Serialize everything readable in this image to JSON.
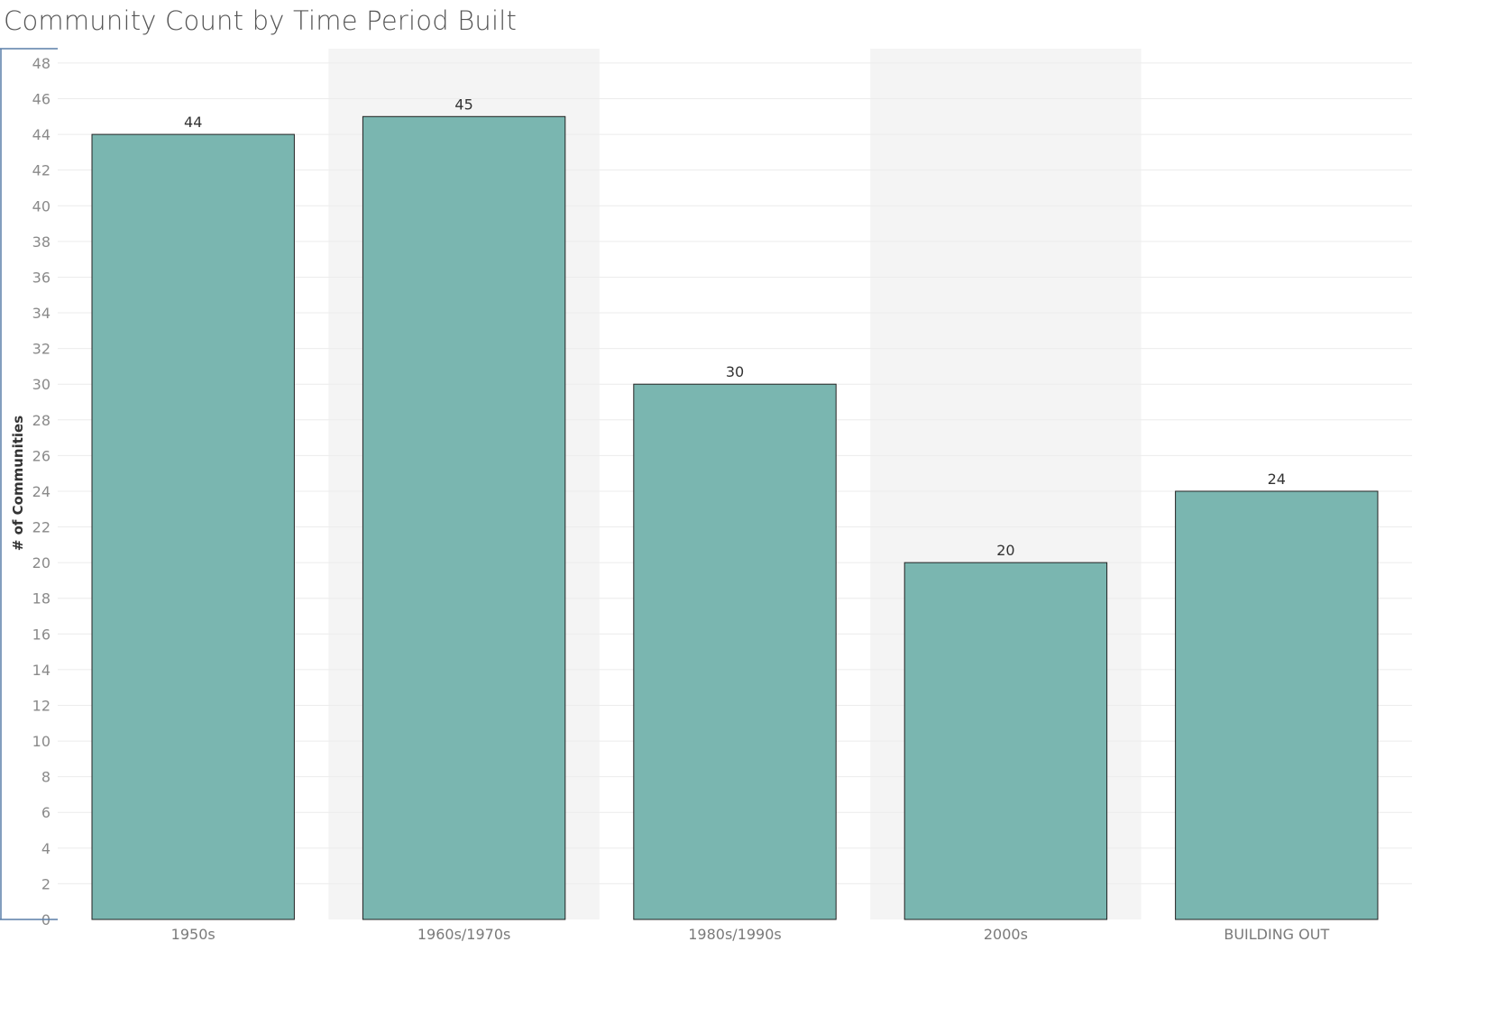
{
  "chart_data": {
    "type": "bar",
    "title": "Community Count by Time Period Built",
    "xlabel": "",
    "ylabel": "# of Communities",
    "categories": [
      "1950s",
      "1960s/1970s",
      "1980s/1990s",
      "2000s",
      "BUILDING OUT"
    ],
    "values": [
      44,
      45,
      30,
      20,
      24
    ],
    "ylim": [
      0,
      48
    ],
    "yticks": [
      0,
      2,
      4,
      6,
      8,
      10,
      12,
      14,
      16,
      18,
      20,
      22,
      24,
      26,
      28,
      30,
      32,
      34,
      36,
      38,
      40,
      42,
      44,
      46,
      48
    ],
    "grid": true,
    "banded_columns": true,
    "colors": {
      "bar": "#7ab6b0",
      "bar_outline": "#222222",
      "band": "#f4f4f4",
      "grid": "#ececec",
      "axis": "#5a7fa8"
    }
  }
}
